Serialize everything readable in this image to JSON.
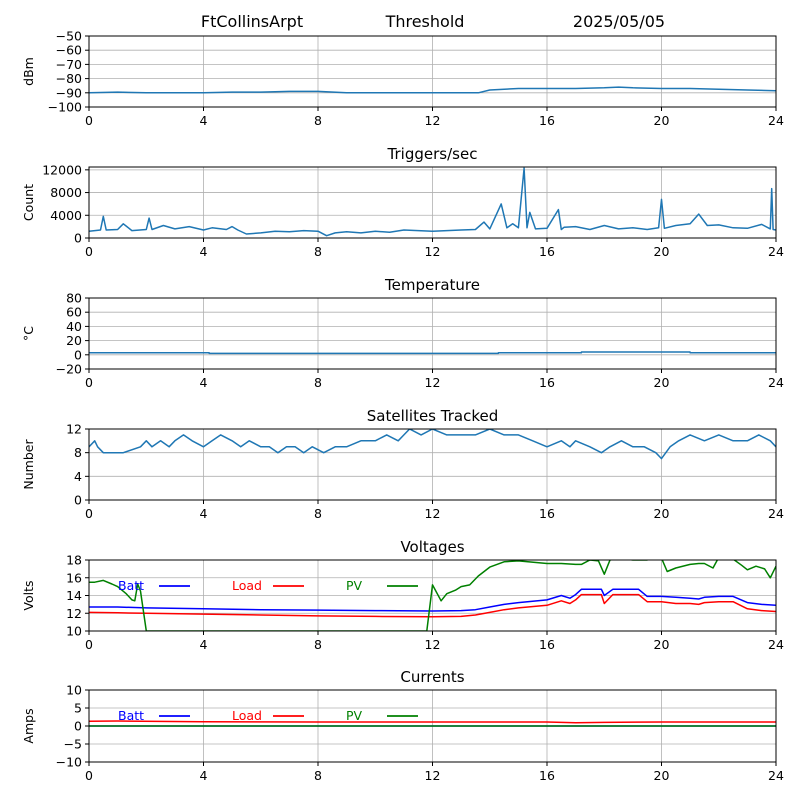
{
  "header": {
    "station": "FtCollinsArpt",
    "mode": "Threshold",
    "date": "2025/05/05"
  },
  "colors": {
    "series_default": "#1f77b4",
    "grid": "#b0b0b0",
    "batt": "#0000ff",
    "load": "#ff0000",
    "pv": "#008000"
  },
  "chart_data": [
    {
      "id": "threshold",
      "type": "line",
      "title": "",
      "xlabel": "",
      "ylabel": "dBm",
      "xlim": [
        0,
        24
      ],
      "ylim": [
        -100,
        -50
      ],
      "xticks": [
        0,
        4,
        8,
        12,
        16,
        20,
        24
      ],
      "yticks": [
        -100,
        -90,
        -80,
        -70,
        -60,
        -50
      ],
      "grid": true,
      "series": [
        {
          "color": "#1f77b4",
          "x": [
            0,
            1,
            2,
            3,
            4,
            5,
            6,
            7,
            8,
            9,
            10,
            11,
            12,
            13,
            13.6,
            14,
            15,
            16,
            17,
            18,
            18.5,
            19,
            20,
            21,
            22,
            23,
            24
          ],
          "y": [
            -90,
            -89.5,
            -90,
            -90,
            -90,
            -89.5,
            -89.5,
            -89,
            -89,
            -90,
            -90,
            -90,
            -90,
            -90,
            -90,
            -88,
            -87,
            -87,
            -87,
            -86.5,
            -86,
            -86.5,
            -87,
            -87,
            -87.5,
            -88,
            -88.5
          ]
        }
      ]
    },
    {
      "id": "triggers",
      "type": "line",
      "title": "Triggers/sec",
      "xlabel": "",
      "ylabel": "Count",
      "xlim": [
        0,
        24
      ],
      "ylim": [
        0,
        12500
      ],
      "xticks": [
        0,
        4,
        8,
        12,
        16,
        20,
        24
      ],
      "yticks": [
        0,
        4000,
        8000,
        12000
      ],
      "grid": true,
      "series": [
        {
          "color": "#1f77b4",
          "x": [
            0,
            0.4,
            0.5,
            0.6,
            1,
            1.2,
            1.5,
            2,
            2.1,
            2.2,
            2.6,
            3,
            3.5,
            4,
            4.3,
            4.8,
            5,
            5.2,
            5.5,
            6,
            6.5,
            7,
            7.5,
            8,
            8.3,
            8.6,
            9,
            9.5,
            10,
            10.5,
            11,
            11.5,
            12,
            12.5,
            13,
            13.5,
            13.8,
            14,
            14.4,
            14.6,
            14.8,
            15,
            15.2,
            15.3,
            15.4,
            15.6,
            16,
            16.4,
            16.5,
            16.6,
            17,
            17.5,
            18,
            18.5,
            19,
            19.5,
            19.9,
            20,
            20.1,
            20.5,
            21,
            21.3,
            21.6,
            22,
            22.5,
            23,
            23.5,
            23.8,
            23.85,
            23.9,
            24
          ],
          "y": [
            1200,
            1400,
            3800,
            1400,
            1500,
            2500,
            1300,
            1500,
            3500,
            1500,
            2200,
            1600,
            2000,
            1400,
            1800,
            1500,
            2000,
            1400,
            700,
            900,
            1200,
            1100,
            1300,
            1200,
            400,
            900,
            1100,
            900,
            1200,
            1000,
            1400,
            1300,
            1200,
            1300,
            1400,
            1500,
            2800,
            1600,
            6000,
            1800,
            2500,
            1800,
            12300,
            1800,
            4500,
            1600,
            1700,
            5000,
            1500,
            1900,
            2000,
            1500,
            2200,
            1600,
            1800,
            1500,
            1800,
            6800,
            1700,
            2200,
            2500,
            4200,
            2200,
            2300,
            1800,
            1700,
            2400,
            1600,
            8700,
            1500,
            1400
          ]
        }
      ]
    },
    {
      "id": "temperature",
      "type": "line",
      "title": "Temperature",
      "xlabel": "",
      "ylabel": "°C",
      "xlim": [
        0,
        24
      ],
      "ylim": [
        -20,
        80
      ],
      "xticks": [
        0,
        4,
        8,
        12,
        16,
        20,
        24
      ],
      "yticks": [
        -20,
        0,
        20,
        40,
        60,
        80
      ],
      "grid": true,
      "series": [
        {
          "color": "#1f77b4",
          "x": [
            0,
            4.2,
            4.2,
            14.3,
            14.3,
            17.2,
            17.2,
            21,
            21,
            24
          ],
          "y": [
            3,
            3,
            2,
            2,
            3,
            3,
            4,
            4,
            3,
            3
          ]
        }
      ]
    },
    {
      "id": "satellites",
      "type": "line",
      "title": "Satellites Tracked",
      "xlabel": "",
      "ylabel": "Number",
      "xlim": [
        0,
        24
      ],
      "ylim": [
        0,
        12
      ],
      "xticks": [
        0,
        4,
        8,
        12,
        16,
        20,
        24
      ],
      "yticks": [
        0,
        4,
        8,
        12
      ],
      "grid": true,
      "series": [
        {
          "color": "#1f77b4",
          "x": [
            0,
            0.2,
            0.3,
            0.5,
            1.2,
            1.8,
            2,
            2.2,
            2.5,
            2.8,
            3,
            3.3,
            3.6,
            4,
            4.3,
            4.6,
            5,
            5.3,
            5.6,
            6,
            6.3,
            6.6,
            6.9,
            7.2,
            7.5,
            7.8,
            8.2,
            8.6,
            9,
            9.5,
            10,
            10.4,
            10.8,
            11,
            11.2,
            11.6,
            12,
            12.5,
            13,
            13.5,
            14,
            14.5,
            15,
            15.5,
            16,
            16.5,
            16.8,
            17,
            17.5,
            17.9,
            18.2,
            18.6,
            19,
            19.4,
            19.8,
            20,
            20.3,
            20.6,
            21,
            21.5,
            22,
            22.5,
            23,
            23.4,
            23.8,
            24
          ],
          "y": [
            9,
            10,
            9,
            8,
            8,
            9,
            10,
            9,
            10,
            9,
            10,
            11,
            10,
            9,
            10,
            11,
            10,
            9,
            10,
            9,
            9,
            8,
            9,
            9,
            8,
            9,
            8,
            9,
            9,
            10,
            10,
            11,
            10,
            11,
            12,
            11,
            12,
            11,
            11,
            11,
            12,
            11,
            11,
            10,
            9,
            10,
            9,
            10,
            9,
            8,
            9,
            10,
            9,
            9,
            8,
            7,
            9,
            10,
            11,
            10,
            11,
            10,
            10,
            11,
            10,
            9
          ]
        }
      ]
    },
    {
      "id": "voltages",
      "type": "line",
      "title": "Voltages",
      "xlabel": "",
      "ylabel": "Volts",
      "xlim": [
        0,
        24
      ],
      "ylim": [
        10,
        18
      ],
      "xticks": [
        0,
        4,
        8,
        12,
        16,
        20,
        24
      ],
      "yticks": [
        10,
        12,
        14,
        16,
        18
      ],
      "grid": true,
      "legend": "top-left, horizontal",
      "series": [
        {
          "name": "Batt",
          "color": "#0000ff",
          "x": [
            0,
            1,
            2,
            4,
            6,
            8,
            10,
            12,
            13,
            13.5,
            14,
            14.5,
            15,
            16,
            16.5,
            16.8,
            17,
            17.2,
            17.5,
            17.9,
            18,
            18.3,
            18.5,
            19,
            19.2,
            19.5,
            20,
            20.5,
            21,
            21.3,
            21.5,
            22,
            22.5,
            23,
            23.5,
            24
          ],
          "y": [
            12.7,
            12.7,
            12.6,
            12.5,
            12.4,
            12.35,
            12.3,
            12.25,
            12.3,
            12.4,
            12.7,
            13,
            13.2,
            13.5,
            14,
            13.7,
            14.1,
            14.7,
            14.7,
            14.7,
            14,
            14.7,
            14.7,
            14.7,
            14.7,
            13.9,
            13.9,
            13.8,
            13.7,
            13.6,
            13.8,
            13.9,
            13.9,
            13.2,
            13,
            12.9
          ]
        },
        {
          "name": "Load",
          "color": "#ff0000",
          "x": [
            0,
            1,
            2,
            4,
            6,
            8,
            10,
            12,
            13,
            13.5,
            14,
            14.5,
            15,
            16,
            16.5,
            16.8,
            17,
            17.2,
            17.5,
            17.9,
            18,
            18.3,
            18.5,
            19,
            19.2,
            19.5,
            20,
            20.5,
            21,
            21.3,
            21.5,
            22,
            22.5,
            23,
            23.5,
            24
          ],
          "y": [
            12.1,
            12.05,
            12,
            11.9,
            11.8,
            11.7,
            11.65,
            11.6,
            11.65,
            11.8,
            12.1,
            12.4,
            12.6,
            12.9,
            13.4,
            13.1,
            13.5,
            14.1,
            14.1,
            14.1,
            13.1,
            14.1,
            14.1,
            14.1,
            14.1,
            13.3,
            13.3,
            13.1,
            13.1,
            13,
            13.2,
            13.3,
            13.3,
            12.5,
            12.3,
            12.2
          ]
        },
        {
          "name": "PV",
          "color": "#008000",
          "x": [
            0,
            0.2,
            0.5,
            0.8,
            1,
            1.3,
            1.5,
            1.6,
            1.7,
            1.8,
            2,
            2.2,
            11.8,
            12,
            12.3,
            12.5,
            12.8,
            13,
            13.3,
            13.6,
            14,
            14.5,
            15,
            16,
            16.5,
            17,
            17.2,
            17.5,
            17.8,
            18,
            18.2,
            18.5,
            19,
            19.5,
            19.7,
            20,
            20.2,
            20.5,
            21,
            21.3,
            21.5,
            21.8,
            22,
            22.3,
            22.5,
            22.8,
            23,
            23.3,
            23.6,
            23.8,
            24
          ],
          "y": [
            15.5,
            15.5,
            15.7,
            15.3,
            15,
            14.2,
            13.5,
            13.4,
            15.3,
            14.5,
            10,
            10,
            10,
            15.2,
            13.4,
            14.2,
            14.6,
            15,
            15.2,
            16.2,
            17.2,
            17.8,
            17.9,
            17.6,
            17.6,
            17.5,
            17.5,
            18,
            17.9,
            16.4,
            18,
            18.2,
            18,
            18,
            18.3,
            18.2,
            16.7,
            17.1,
            17.5,
            17.6,
            17.6,
            17.1,
            18.3,
            18.2,
            18.1,
            17.4,
            16.9,
            17.3,
            17,
            16,
            17.3
          ]
        }
      ]
    },
    {
      "id": "currents",
      "type": "line",
      "title": "Currents",
      "xlabel": "",
      "ylabel": "Amps",
      "xlim": [
        0,
        24
      ],
      "ylim": [
        -10,
        10
      ],
      "xticks": [
        0,
        4,
        8,
        12,
        16,
        20,
        24
      ],
      "yticks": [
        -10,
        -5,
        0,
        5,
        10
      ],
      "grid": true,
      "legend": "top-left, horizontal",
      "series": [
        {
          "name": "Batt",
          "color": "#0000ff",
          "x": [
            0,
            24
          ],
          "y": [
            0,
            0
          ]
        },
        {
          "name": "Load",
          "color": "#ff0000",
          "x": [
            0,
            1,
            4,
            8,
            12,
            16,
            17,
            18,
            20,
            24
          ],
          "y": [
            1.3,
            1.4,
            1.2,
            1.1,
            1.1,
            1.1,
            0.9,
            1.0,
            1.1,
            1.1
          ]
        },
        {
          "name": "PV",
          "color": "#008000",
          "x": [
            0,
            24
          ],
          "y": [
            0,
            0
          ]
        }
      ]
    }
  ]
}
